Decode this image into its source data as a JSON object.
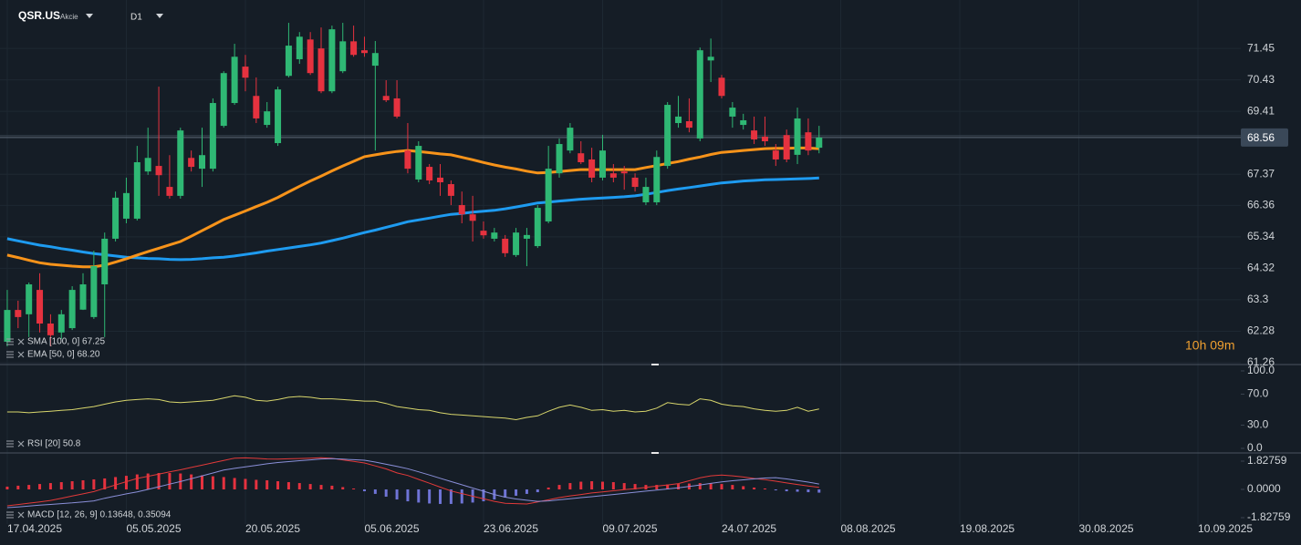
{
  "header": {
    "symbol": "QSR.US",
    "instrument_type": "Akcie",
    "timeframe": "D1"
  },
  "countdown": "10h 09m",
  "chart_data": [
    {
      "type": "candlestick",
      "up_color": "#2fb874",
      "down_color": "#e5323f",
      "open": [
        61.94,
        62.97,
        62.83,
        63.62,
        62.53,
        62.24,
        62.38,
        62.98,
        62.74,
        63.8,
        65.28,
        65.93,
        65.93,
        67.46,
        67.64,
        66.96,
        66.67,
        67.9,
        67.55,
        67.55,
        68.94,
        69.68,
        70.86,
        69.91,
        68.97,
        68.38,
        70.56,
        71.1,
        71.74,
        71.45,
        70.06,
        70.71,
        71.68,
        71.39,
        70.89,
        69.91,
        69.83,
        68.14,
        67.2,
        67.61,
        67.26,
        67.05,
        66.37,
        66.07,
        65.54,
        65.28,
        65.28,
        64.75,
        65.28,
        65.04,
        65.84,
        67.4,
        68.14,
        68.05,
        67.85,
        67.26,
        67.4,
        67.46,
        67.26,
        66.46,
        66.46,
        67.64,
        69.03,
        69.09,
        68.53,
        71.06,
        70.5,
        69.24,
        68.97,
        68.79,
        68.59,
        68.14,
        68.64,
        68.0,
        68.73,
        68.23
      ],
      "high": [
        63.62,
        63.27,
        63.86,
        64.16,
        62.83,
        62.97,
        63.74,
        64.16,
        64.89,
        65.48,
        66.81,
        67.26,
        68.29,
        68.88,
        70.21,
        67.99,
        68.88,
        68.14,
        68.88,
        69.83,
        70.71,
        71.6,
        71.24,
        70.51,
        69.71,
        70.21,
        72.28,
        71.98,
        71.98,
        72.13,
        72.19,
        72.28,
        72.19,
        71.83,
        71.69,
        70.42,
        70.42,
        69.03,
        68.44,
        67.7,
        67.7,
        67.17,
        66.81,
        66.67,
        65.84,
        65.63,
        65.4,
        65.63,
        65.63,
        66.37,
        68.29,
        68.53,
        69.03,
        68.44,
        68.23,
        68.65,
        67.7,
        67.64,
        67.4,
        67.26,
        68.14,
        69.71,
        69.91,
        69.83,
        71.48,
        71.77,
        70.59,
        69.71,
        69.33,
        69.24,
        69.24,
        68.35,
        68.82,
        69.53,
        69.18,
        68.94
      ],
      "low": [
        61.79,
        62.38,
        62.09,
        62.24,
        61.79,
        62.03,
        62.32,
        62.97,
        62.68,
        62.09,
        65.19,
        65.78,
        65.87,
        67.35,
        66.67,
        66.58,
        66.58,
        67.46,
        66.96,
        67.46,
        68.88,
        69.62,
        70.06,
        69.03,
        68.88,
        68.29,
        70.51,
        70.95,
        70.59,
        70.0,
        70.0,
        70.65,
        71.18,
        71.18,
        68.14,
        69.71,
        69.18,
        67.4,
        67.11,
        67.05,
        66.67,
        66.37,
        65.78,
        65.19,
        65.28,
        65.19,
        64.69,
        64.69,
        64.39,
        64.98,
        65.78,
        67.26,
        68.05,
        67.7,
        67.11,
        67.17,
        67.11,
        66.87,
        66.81,
        66.37,
        66.37,
        67.55,
        68.88,
        68.73,
        68.44,
        70.36,
        69.83,
        68.88,
        68.82,
        68.35,
        68.29,
        67.64,
        67.76,
        67.7,
        67.99,
        68.05
      ],
      "close": [
        62.97,
        62.74,
        63.8,
        62.53,
        62.15,
        62.83,
        63.62,
        63.8,
        64.39,
        65.28,
        66.61,
        66.76,
        67.76,
        67.9,
        67.34,
        66.67,
        68.79,
        67.61,
        67.99,
        69.68,
        70.65,
        71.18,
        70.5,
        69.18,
        69.41,
        70.12,
        71.54,
        71.83,
        70.65,
        70.06,
        72.07,
        71.68,
        71.24,
        71.3,
        71.3,
        69.77,
        69.24,
        67.55,
        68.29,
        67.17,
        67.11,
        66.67,
        66.07,
        65.86,
        65.39,
        65.48,
        64.81,
        65.48,
        65.4,
        66.28,
        67.55,
        68.35,
        68.88,
        67.76,
        67.26,
        68.14,
        67.26,
        67.4,
        66.96,
        66.96,
        67.93,
        69.62,
        69.24,
        68.88,
        71.39,
        71.18,
        69.91,
        69.53,
        69.12,
        68.5,
        68.44,
        67.85,
        67.85,
        69.18,
        68.14,
        68.56
      ],
      "overlays": [
        {
          "name": "SMA [100, 0] 67.25",
          "color": "#1e9bf0",
          "values": [
            65.28,
            65.21,
            65.14,
            65.07,
            65.02,
            64.96,
            64.91,
            64.85,
            64.8,
            64.76,
            64.72,
            64.68,
            64.66,
            64.64,
            64.63,
            64.61,
            64.6,
            64.61,
            64.63,
            64.66,
            64.68,
            64.72,
            64.77,
            64.82,
            64.88,
            64.93,
            64.98,
            65.03,
            65.08,
            65.14,
            65.22,
            65.3,
            65.39,
            65.48,
            65.56,
            65.65,
            65.74,
            65.83,
            65.89,
            65.95,
            66.01,
            66.07,
            66.1,
            66.14,
            66.17,
            66.2,
            66.25,
            66.31,
            66.37,
            66.44,
            66.47,
            66.5,
            66.53,
            66.56,
            66.58,
            66.6,
            66.62,
            66.64,
            66.67,
            66.72,
            66.78,
            66.84,
            66.89,
            66.94,
            66.99,
            67.04,
            67.09,
            67.12,
            67.15,
            67.17,
            67.19,
            67.2,
            67.21,
            67.22,
            67.23,
            67.25
          ]
        },
        {
          "name": "EMA [50, 0] 68.20",
          "color": "#f7931a",
          "values": [
            64.75,
            64.67,
            64.58,
            64.5,
            64.45,
            64.42,
            64.39,
            64.37,
            64.37,
            64.42,
            64.52,
            64.63,
            64.75,
            64.86,
            64.97,
            65.08,
            65.19,
            65.36,
            65.54,
            65.72,
            65.9,
            66.04,
            66.18,
            66.32,
            66.46,
            66.62,
            66.8,
            66.98,
            67.15,
            67.31,
            67.48,
            67.64,
            67.79,
            67.94,
            68.0,
            68.06,
            68.11,
            68.14,
            68.11,
            68.07,
            68.03,
            68.0,
            67.92,
            67.84,
            67.75,
            67.67,
            67.6,
            67.54,
            67.47,
            67.41,
            67.43,
            67.46,
            67.49,
            67.52,
            67.52,
            67.52,
            67.52,
            67.52,
            67.52,
            67.59,
            67.65,
            67.72,
            67.78,
            67.86,
            67.93,
            68.01,
            68.08,
            68.11,
            68.14,
            68.17,
            68.2,
            68.21,
            68.21,
            68.22,
            68.22,
            68.2
          ]
        }
      ],
      "last_price": 68.56,
      "ylim": [
        61.2,
        73.02
      ],
      "yticks": [
        71.45,
        70.43,
        69.41,
        67.37,
        66.36,
        65.34,
        64.32,
        63.3,
        62.28,
        61.26
      ],
      "xlim": [
        -0.67,
        113.96
      ],
      "xticks": [
        {
          "value": 0,
          "label": "17.04.2025"
        },
        {
          "value": 11,
          "label": "05.05.2025"
        },
        {
          "value": 22,
          "label": "20.05.2025"
        },
        {
          "value": 33,
          "label": "05.06.2025"
        },
        {
          "value": 44,
          "label": "23.06.2025"
        },
        {
          "value": 55,
          "label": "09.07.2025"
        },
        {
          "value": 66,
          "label": "24.07.2025"
        },
        {
          "value": 77,
          "label": "08.08.2025"
        },
        {
          "value": 88,
          "label": "19.08.2025"
        },
        {
          "value": 99,
          "label": "30.08.2025"
        },
        {
          "value": 110,
          "label": "10.09.2025"
        }
      ],
      "grid": true
    },
    {
      "type": "line",
      "name": "RSI [20] 50.8",
      "color": "#d8d66c",
      "values": [
        47,
        47,
        46,
        47,
        48,
        49,
        50,
        52,
        54,
        57,
        60,
        62,
        63,
        64,
        63,
        60,
        59,
        60,
        61,
        62,
        65,
        68,
        66,
        62,
        61,
        63,
        66,
        67,
        66,
        64,
        64,
        63,
        62,
        61,
        61,
        58,
        54,
        52,
        50,
        49,
        46,
        44,
        43,
        42,
        41,
        40,
        39,
        37,
        40,
        42,
        48,
        53,
        56,
        53,
        49,
        50,
        48,
        49,
        47,
        48,
        52,
        59,
        57,
        56,
        64,
        62,
        57,
        55,
        54,
        51,
        49,
        48,
        49,
        53,
        48,
        50.8
      ],
      "ylim": [
        -5.9,
        108.2
      ],
      "yticks": [
        {
          "value": 100,
          "label": "100.0"
        },
        {
          "value": 70,
          "label": "70.0"
        },
        {
          "value": 30,
          "label": "30.0"
        },
        {
          "value": 0,
          "label": "0.0"
        }
      ]
    },
    {
      "type": "macd",
      "label": "MACD [12, 26, 9] 0.13648, 0.35094",
      "histogram": {
        "up_color": "#e5323f",
        "down_color": "#6f74d6",
        "values": [
          0.18,
          0.24,
          0.29,
          0.35,
          0.41,
          0.47,
          0.53,
          0.59,
          0.65,
          0.71,
          0.8,
          0.88,
          0.97,
          1.03,
          1.06,
          1.06,
          1.03,
          0.97,
          0.91,
          0.85,
          0.8,
          0.74,
          0.68,
          0.62,
          0.59,
          0.53,
          0.47,
          0.41,
          0.35,
          0.29,
          0.24,
          0.15,
          0.06,
          -0.12,
          -0.29,
          -0.47,
          -0.65,
          -0.77,
          -0.85,
          -0.91,
          -0.94,
          -0.94,
          -0.91,
          -0.85,
          -0.77,
          -0.65,
          -0.53,
          -0.41,
          -0.29,
          -0.18,
          0.12,
          0.29,
          0.41,
          0.5,
          0.53,
          0.5,
          0.47,
          0.41,
          0.35,
          0.29,
          0.29,
          0.32,
          0.35,
          0.38,
          0.41,
          0.41,
          0.35,
          0.29,
          0.21,
          0.12,
          0.06,
          -0.06,
          -0.12,
          -0.15,
          -0.18,
          -0.21
        ]
      },
      "series": [
        {
          "color": "#e23a3a",
          "values": [
            -1.06,
            -0.98,
            -0.89,
            -0.81,
            -0.71,
            -0.57,
            -0.43,
            -0.29,
            -0.14,
            0.08,
            0.29,
            0.5,
            0.71,
            0.85,
            0.99,
            1.13,
            1.27,
            1.42,
            1.57,
            1.72,
            1.87,
            2.02,
            2.04,
            2.01,
            1.97,
            1.96,
            1.98,
            2.0,
            2.02,
            2.05,
            2.01,
            1.91,
            1.81,
            1.71,
            1.52,
            1.33,
            1.07,
            0.9,
            0.65,
            0.4,
            0.15,
            -0.1,
            -0.27,
            -0.44,
            -0.6,
            -0.77,
            -0.9,
            -0.92,
            -0.94,
            -0.81,
            -0.67,
            -0.53,
            -0.42,
            -0.33,
            -0.23,
            -0.16,
            -0.09,
            -0.02,
            0.05,
            0.13,
            0.21,
            0.29,
            0.38,
            0.56,
            0.75,
            0.88,
            0.93,
            0.88,
            0.8,
            0.71,
            0.63,
            0.53,
            0.42,
            0.32,
            0.22,
            0.13648
          ]
        },
        {
          "color": "#8a8fd8",
          "values": [
            -1.18,
            -1.13,
            -1.08,
            -1.02,
            -0.97,
            -0.92,
            -0.87,
            -0.81,
            -0.74,
            -0.57,
            -0.43,
            -0.29,
            -0.16,
            0.0,
            0.17,
            0.34,
            0.51,
            0.69,
            0.88,
            1.06,
            1.25,
            1.36,
            1.46,
            1.56,
            1.66,
            1.74,
            1.8,
            1.86,
            1.91,
            1.97,
            1.99,
            1.96,
            1.92,
            1.89,
            1.77,
            1.63,
            1.49,
            1.34,
            1.14,
            0.93,
            0.72,
            0.51,
            0.3,
            0.09,
            -0.12,
            -0.33,
            -0.5,
            -0.62,
            -0.7,
            -0.77,
            -0.74,
            -0.67,
            -0.6,
            -0.53,
            -0.47,
            -0.4,
            -0.33,
            -0.26,
            -0.18,
            -0.11,
            -0.04,
            0.03,
            0.1,
            0.19,
            0.29,
            0.39,
            0.49,
            0.56,
            0.62,
            0.68,
            0.74,
            0.76,
            0.68,
            0.58,
            0.47,
            0.35094
          ]
        }
      ],
      "ylim": [
        -2.24,
        2.3
      ],
      "yticks": [
        1.82759,
        {
          "value": 0,
          "label": "0.0000"
        },
        -1.82759
      ]
    }
  ]
}
